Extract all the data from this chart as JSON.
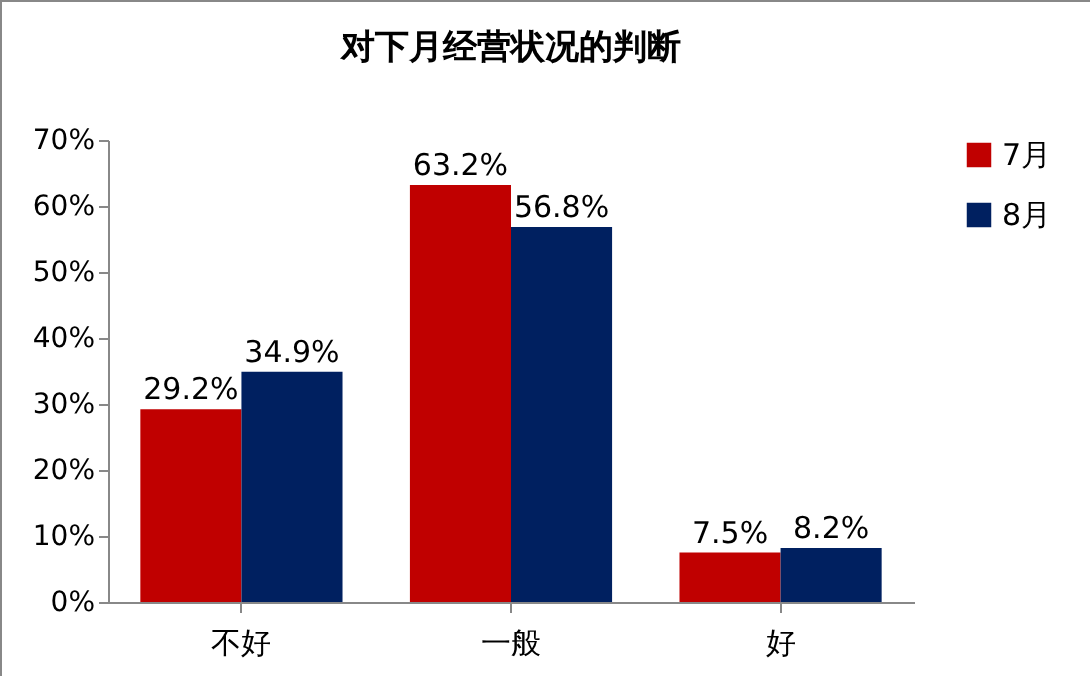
{
  "chart_data": {
    "type": "bar",
    "title": "对下月经营状况的判断",
    "categories": [
      "不好",
      "一般",
      "好"
    ],
    "series": [
      {
        "name": "7月",
        "color": "#c00000",
        "values": [
          29.2,
          63.2,
          7.5
        ],
        "value_labels": [
          "29.2%",
          "63.2%",
          "7.5%"
        ]
      },
      {
        "name": "8月",
        "color": "#002060",
        "values": [
          34.9,
          56.8,
          8.2
        ],
        "value_labels": [
          "34.9%",
          "56.8%",
          "8.2%"
        ]
      }
    ],
    "ylim": [
      0,
      70
    ],
    "yticks": [
      {
        "value": 0,
        "label": "0%"
      },
      {
        "value": 10,
        "label": "10%"
      },
      {
        "value": 20,
        "label": "20%"
      },
      {
        "value": 30,
        "label": "30%"
      },
      {
        "value": 40,
        "label": "40%"
      },
      {
        "value": 50,
        "label": "50%"
      },
      {
        "value": 60,
        "label": "60%"
      },
      {
        "value": 70,
        "label": "70%"
      }
    ],
    "grid": false,
    "legend": "right"
  }
}
